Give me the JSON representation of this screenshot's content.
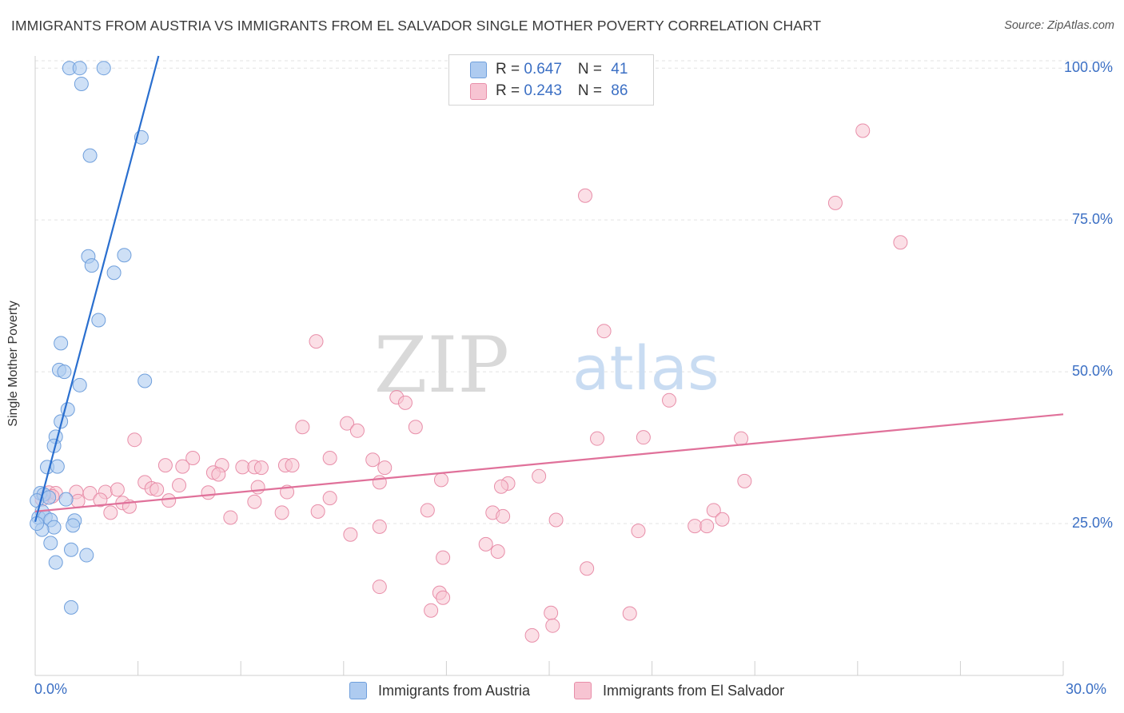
{
  "title": "IMMIGRANTS FROM AUSTRIA VS IMMIGRANTS FROM EL SALVADOR SINGLE MOTHER POVERTY CORRELATION CHART",
  "source": "Source: ZipAtlas.com",
  "watermark": {
    "zip": "ZIP",
    "atlas": "atlas"
  },
  "colors": {
    "austria_fill": "#aecbf0",
    "austria_stroke": "#6f9fdc",
    "austria_line": "#2a6fcf",
    "elsalvador_fill": "#f7c4d2",
    "elsalvador_stroke": "#e88ea9",
    "elsalvador_line": "#e0719a",
    "tick_label": "#3b6fc4",
    "grid": "#e3e3e3"
  },
  "legend": {
    "rows": [
      {
        "r_label": "R = ",
        "r_value": "0.647",
        "n_label": "N = ",
        "n_value": "41"
      },
      {
        "r_label": "R = ",
        "r_value": "0.243",
        "n_label": "N = ",
        "n_value": "86"
      }
    ]
  },
  "bottom_legend": {
    "austria": "Immigrants from Austria",
    "elsalvador": "Immigrants from El Salvador"
  },
  "chart_data": {
    "type": "scatter",
    "title": "IMMIGRANTS FROM AUSTRIA VS IMMIGRANTS FROM EL SALVADOR SINGLE MOTHER POVERTY CORRELATION CHART",
    "xlabel": "",
    "ylabel": "Single Mother Poverty",
    "xlim": [
      0,
      30
    ],
    "ylim": [
      0,
      102
    ],
    "x_tick_labels": [
      "0.0%",
      "30.0%"
    ],
    "y_ticks": [
      25,
      50,
      75,
      100
    ],
    "y_tick_labels": [
      "25.0%",
      "50.0%",
      "75.0%",
      "100.0%"
    ],
    "grid": "horizontal dashed",
    "legend_position": "top-center",
    "series": [
      {
        "name": "Immigrants from Austria",
        "R": 0.647,
        "N": 41,
        "trend": {
          "x": [
            0.0,
            3.6
          ],
          "y": [
            25.3,
            102
          ]
        },
        "points": [
          [
            1.0,
            100.0
          ],
          [
            1.3,
            100.0
          ],
          [
            2.0,
            100.0
          ],
          [
            1.35,
            97.4
          ],
          [
            3.1,
            88.6
          ],
          [
            1.6,
            85.6
          ],
          [
            1.55,
            69.0
          ],
          [
            1.65,
            67.5
          ],
          [
            2.3,
            66.3
          ],
          [
            2.6,
            69.2
          ],
          [
            1.85,
            58.5
          ],
          [
            0.75,
            54.7
          ],
          [
            0.7,
            50.3
          ],
          [
            0.85,
            50.0
          ],
          [
            3.2,
            48.5
          ],
          [
            1.3,
            47.8
          ],
          [
            0.95,
            43.8
          ],
          [
            0.75,
            41.8
          ],
          [
            0.6,
            39.3
          ],
          [
            0.55,
            37.8
          ],
          [
            0.35,
            34.3
          ],
          [
            0.65,
            34.4
          ],
          [
            0.15,
            30.0
          ],
          [
            0.25,
            29.8
          ],
          [
            0.4,
            29.3
          ],
          [
            0.05,
            28.8
          ],
          [
            0.2,
            27.0
          ],
          [
            0.1,
            26.0
          ],
          [
            0.3,
            26.1
          ],
          [
            0.45,
            25.6
          ],
          [
            0.55,
            24.4
          ],
          [
            0.2,
            24.0
          ],
          [
            1.15,
            25.5
          ],
          [
            1.1,
            24.7
          ],
          [
            0.45,
            21.8
          ],
          [
            1.05,
            20.7
          ],
          [
            1.5,
            19.8
          ],
          [
            0.6,
            18.6
          ],
          [
            1.05,
            11.2
          ],
          [
            0.05,
            25.0
          ],
          [
            0.9,
            29.0
          ]
        ]
      },
      {
        "name": "Immigrants from El Salvador",
        "R": 0.243,
        "N": 86,
        "trend": {
          "x": [
            0.0,
            30.0
          ],
          "y": [
            27.0,
            43.0
          ]
        },
        "points": [
          [
            24.15,
            89.7
          ],
          [
            16.05,
            79.0
          ],
          [
            23.35,
            77.8
          ],
          [
            25.25,
            71.3
          ],
          [
            8.2,
            55.0
          ],
          [
            16.6,
            56.7
          ],
          [
            10.55,
            45.8
          ],
          [
            10.8,
            44.9
          ],
          [
            18.5,
            45.3
          ],
          [
            9.1,
            41.5
          ],
          [
            7.8,
            40.9
          ],
          [
            11.1,
            40.9
          ],
          [
            9.4,
            40.3
          ],
          [
            16.4,
            39.0
          ],
          [
            17.75,
            39.2
          ],
          [
            20.6,
            39.0
          ],
          [
            2.9,
            38.8
          ],
          [
            4.6,
            35.8
          ],
          [
            8.6,
            35.8
          ],
          [
            9.85,
            35.5
          ],
          [
            3.8,
            34.6
          ],
          [
            4.3,
            34.4
          ],
          [
            5.45,
            34.6
          ],
          [
            6.05,
            34.3
          ],
          [
            6.4,
            34.3
          ],
          [
            6.6,
            34.2
          ],
          [
            7.3,
            34.6
          ],
          [
            7.5,
            34.6
          ],
          [
            10.2,
            34.2
          ],
          [
            5.2,
            33.4
          ],
          [
            5.35,
            33.1
          ],
          [
            14.7,
            32.8
          ],
          [
            11.85,
            32.2
          ],
          [
            20.7,
            32.0
          ],
          [
            3.2,
            31.8
          ],
          [
            10.05,
            31.8
          ],
          [
            13.8,
            31.6
          ],
          [
            13.6,
            31.1
          ],
          [
            4.2,
            31.3
          ],
          [
            6.5,
            31.0
          ],
          [
            3.4,
            30.8
          ],
          [
            3.55,
            30.6
          ],
          [
            5.05,
            30.1
          ],
          [
            2.05,
            30.2
          ],
          [
            2.4,
            30.6
          ],
          [
            7.35,
            30.2
          ],
          [
            1.6,
            30.0
          ],
          [
            1.2,
            30.2
          ],
          [
            0.4,
            30.1
          ],
          [
            0.6,
            30.0
          ],
          [
            0.5,
            29.5
          ],
          [
            0.2,
            29.0
          ],
          [
            1.25,
            28.7
          ],
          [
            3.9,
            28.8
          ],
          [
            8.6,
            29.2
          ],
          [
            6.4,
            28.6
          ],
          [
            1.9,
            28.9
          ],
          [
            2.55,
            28.4
          ],
          [
            2.75,
            27.8
          ],
          [
            2.2,
            26.8
          ],
          [
            7.2,
            26.8
          ],
          [
            8.25,
            27.0
          ],
          [
            11.45,
            27.2
          ],
          [
            13.35,
            26.8
          ],
          [
            13.65,
            26.2
          ],
          [
            5.7,
            26.0
          ],
          [
            15.2,
            25.6
          ],
          [
            19.8,
            27.2
          ],
          [
            20.05,
            25.7
          ],
          [
            19.25,
            24.6
          ],
          [
            17.6,
            23.8
          ],
          [
            19.6,
            24.6
          ],
          [
            10.05,
            24.5
          ],
          [
            9.2,
            23.2
          ],
          [
            13.15,
            21.6
          ],
          [
            13.5,
            20.4
          ],
          [
            11.9,
            19.4
          ],
          [
            16.1,
            17.6
          ],
          [
            10.05,
            14.6
          ],
          [
            11.8,
            13.6
          ],
          [
            11.9,
            12.8
          ],
          [
            11.55,
            10.7
          ],
          [
            15.05,
            10.3
          ],
          [
            17.35,
            10.2
          ],
          [
            15.1,
            8.2
          ],
          [
            14.5,
            6.6
          ]
        ]
      }
    ]
  }
}
